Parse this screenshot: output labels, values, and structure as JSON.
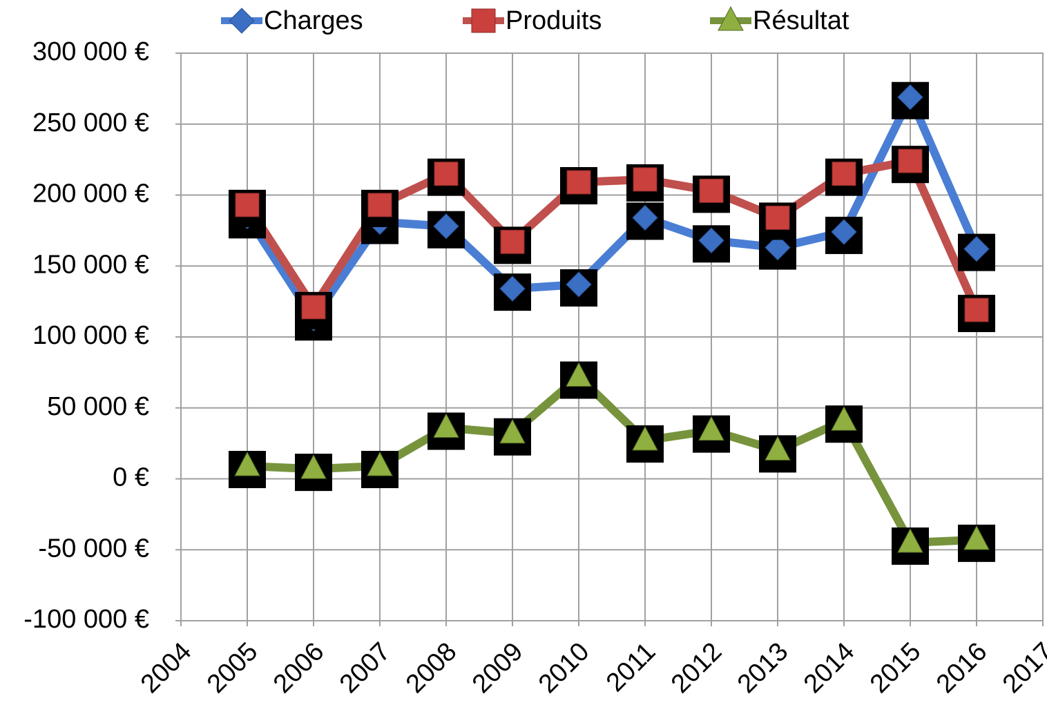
{
  "chart_data": {
    "type": "line",
    "x": [
      2005,
      2006,
      2007,
      2008,
      2009,
      2010,
      2011,
      2012,
      2013,
      2014,
      2015,
      2016
    ],
    "series": [
      {
        "name": "Charges",
        "color": "#4a7ed4",
        "marker": "diamond",
        "marker_color": "#3b6fc4",
        "values": [
          185000,
          113000,
          181000,
          178000,
          134000,
          137000,
          184000,
          168000,
          163000,
          174000,
          269000,
          162000
        ]
      },
      {
        "name": "Produits",
        "color": "#c0504d",
        "marker": "square",
        "marker_color": "#c9403c",
        "values": [
          193000,
          121000,
          193000,
          215000,
          167000,
          209000,
          211000,
          203000,
          184000,
          215000,
          224000,
          119000
        ]
      },
      {
        "name": "Résultat",
        "color": "#77933c",
        "marker": "triangle",
        "marker_color": "#8fb040",
        "values": [
          9000,
          7000,
          9000,
          36000,
          32000,
          72000,
          27000,
          34000,
          20000,
          41000,
          -45000,
          -43000
        ]
      }
    ],
    "xlim": [
      2004,
      2017
    ],
    "xticks": [
      2004,
      2005,
      2006,
      2007,
      2008,
      2009,
      2010,
      2011,
      2012,
      2013,
      2014,
      2015,
      2016,
      2017
    ],
    "ylim": [
      -100000,
      300000
    ],
    "yticks": [
      {
        "value": -100000,
        "label": "-100 000 €"
      },
      {
        "value": -50000,
        "label": "-50 000 €"
      },
      {
        "value": 0,
        "label": "0 €"
      },
      {
        "value": 50000,
        "label": "50 000 €"
      },
      {
        "value": 100000,
        "label": "100 000 €"
      },
      {
        "value": 150000,
        "label": "150 000 €"
      },
      {
        "value": 200000,
        "label": "200 000 €"
      },
      {
        "value": 250000,
        "label": "250 000 €"
      },
      {
        "value": 300000,
        "label": "300 000 €"
      }
    ],
    "grid": true,
    "legend": "top"
  }
}
